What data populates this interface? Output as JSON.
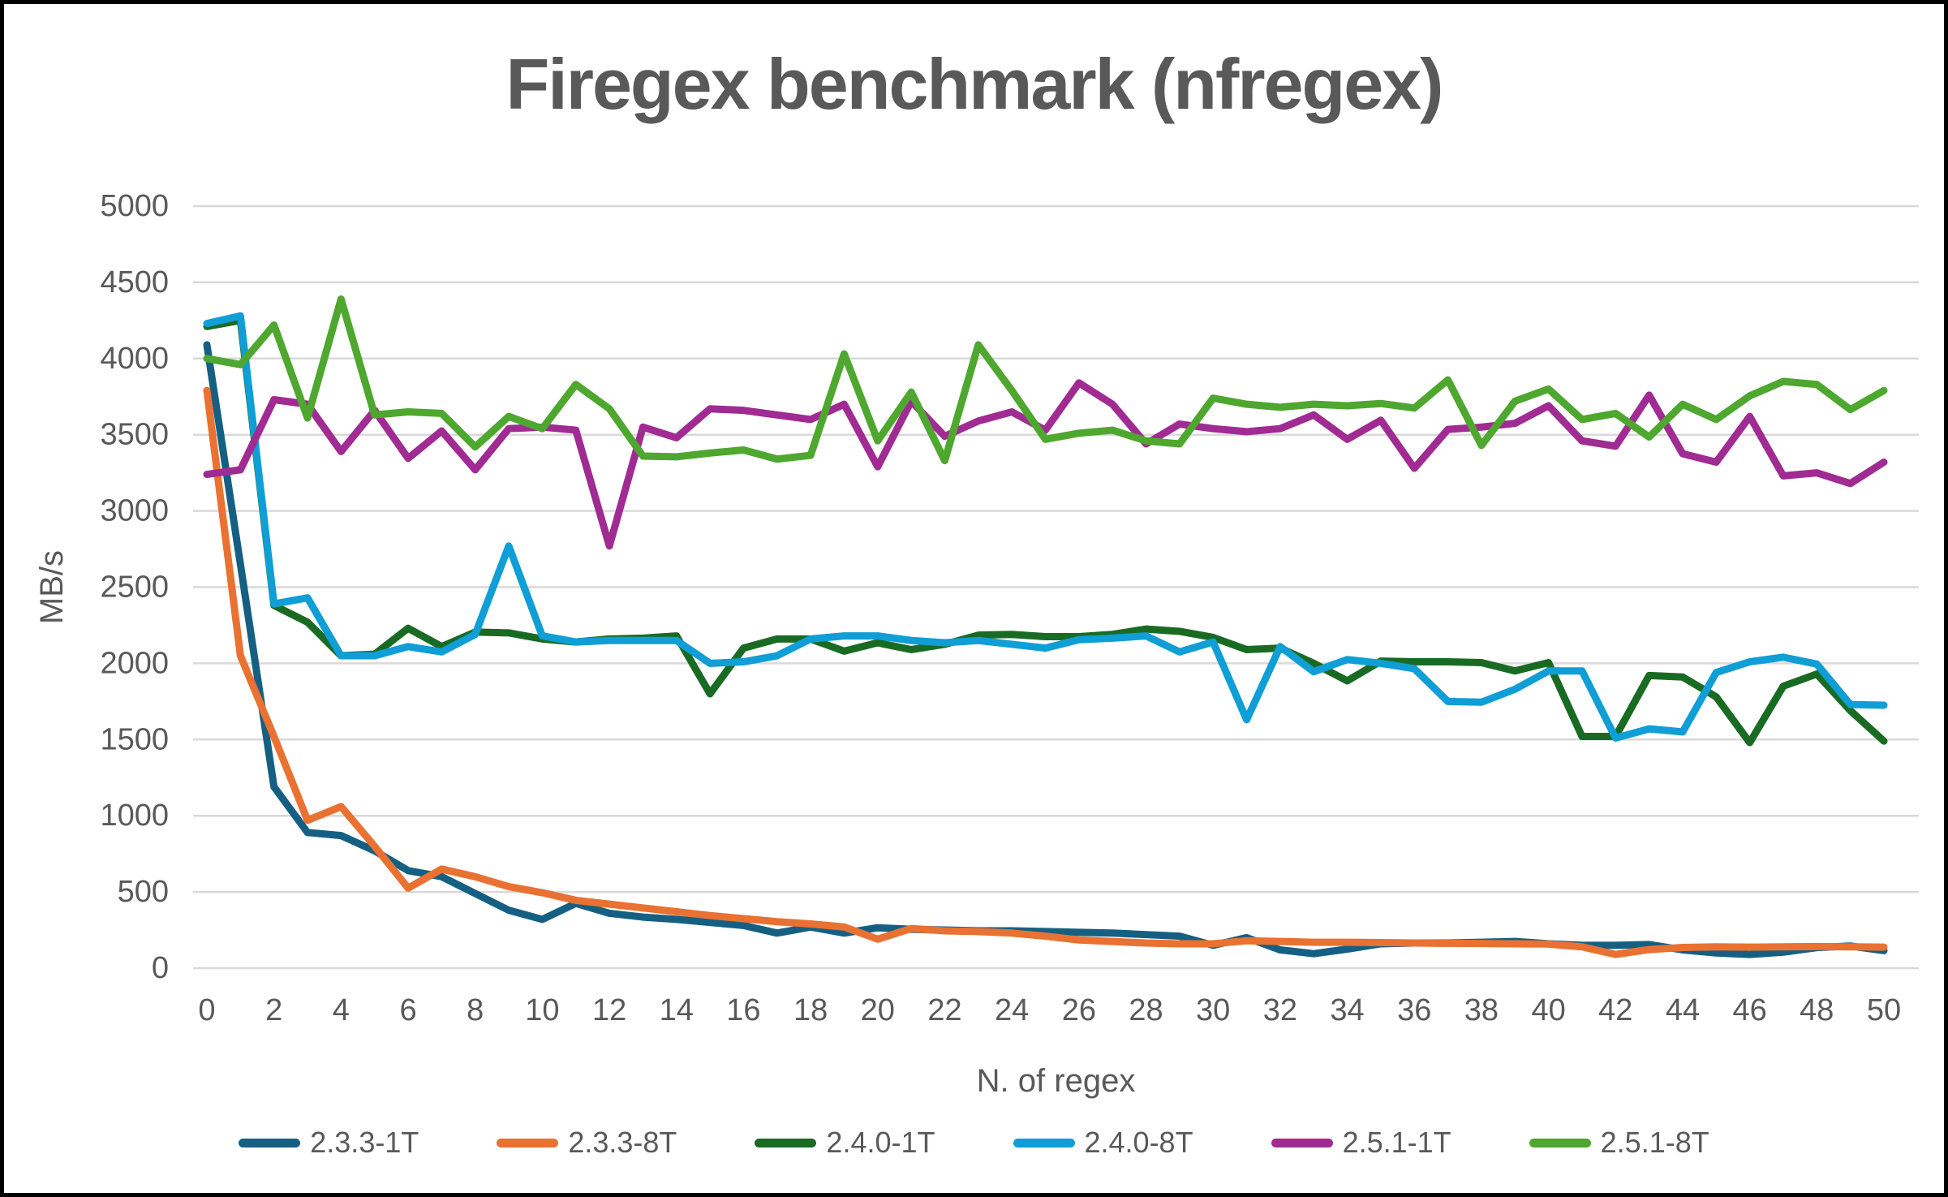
{
  "title": "Firegex benchmark (nfregex)",
  "colors": {
    "title_text": "#595959",
    "axis_text": "#595959",
    "gridline": "#d9d9d9",
    "frame_border": "#000000",
    "background": "#ffffff"
  },
  "chart_data": {
    "type": "line",
    "title": "Firegex benchmark (nfregex)",
    "xlabel": "N. of regex",
    "ylabel": "MB/s",
    "xlim": [
      0,
      50
    ],
    "ylim": [
      0,
      5000
    ],
    "grid": "horizontal",
    "legend_position": "bottom",
    "x_ticks": [
      0,
      2,
      4,
      6,
      8,
      10,
      12,
      14,
      16,
      18,
      20,
      22,
      24,
      26,
      28,
      30,
      32,
      34,
      36,
      38,
      40,
      42,
      44,
      46,
      48,
      50
    ],
    "y_ticks": [
      0,
      500,
      1000,
      1500,
      2000,
      2500,
      3000,
      3500,
      4000,
      4500,
      5000
    ],
    "x": [
      0,
      1,
      2,
      3,
      4,
      5,
      6,
      7,
      8,
      9,
      10,
      11,
      12,
      13,
      14,
      15,
      16,
      17,
      18,
      19,
      20,
      21,
      22,
      23,
      24,
      25,
      26,
      27,
      28,
      29,
      30,
      31,
      32,
      33,
      34,
      35,
      36,
      37,
      38,
      39,
      40,
      41,
      42,
      43,
      44,
      45,
      46,
      47,
      48,
      49,
      50
    ],
    "series": [
      {
        "name": "2.3.3-1T",
        "color": "#156082",
        "values": [
          4090,
          2650,
          1190,
          890,
          870,
          770,
          640,
          600,
          490,
          380,
          320,
          425,
          360,
          335,
          320,
          300,
          280,
          230,
          270,
          230,
          265,
          255,
          250,
          245,
          245,
          240,
          235,
          230,
          220,
          210,
          150,
          200,
          120,
          95,
          125,
          160,
          165,
          165,
          170,
          175,
          160,
          150,
          150,
          155,
          120,
          100,
          90,
          105,
          135,
          145,
          115
        ]
      },
      {
        "name": "2.3.3-8T",
        "color": "#E97132",
        "values": [
          3790,
          2050,
          1520,
          970,
          1060,
          800,
          525,
          650,
          600,
          535,
          495,
          445,
          420,
          395,
          370,
          345,
          325,
          305,
          290,
          270,
          190,
          260,
          245,
          240,
          230,
          210,
          185,
          175,
          165,
          160,
          160,
          180,
          175,
          170,
          170,
          168,
          165,
          163,
          162,
          160,
          158,
          140,
          90,
          122,
          136,
          140,
          138,
          140,
          142,
          140,
          138
        ]
      },
      {
        "name": "2.4.0-1T",
        "color": "#196B24",
        "values": [
          4210,
          4250,
          2380,
          2270,
          2050,
          2060,
          2230,
          2110,
          2205,
          2200,
          2160,
          2140,
          2160,
          2165,
          2180,
          1800,
          2100,
          2160,
          2160,
          2080,
          2135,
          2090,
          2125,
          2185,
          2190,
          2175,
          2175,
          2190,
          2225,
          2210,
          2170,
          2090,
          2100,
          2000,
          1885,
          2015,
          2010,
          2010,
          2005,
          1950,
          2005,
          1520,
          1520,
          1920,
          1910,
          1780,
          1480,
          1850,
          1930,
          1690,
          1490
        ]
      },
      {
        "name": "2.4.0-8T",
        "color": "#0F9ED5",
        "values": [
          4230,
          4280,
          2390,
          2430,
          2050,
          2050,
          2110,
          2075,
          2190,
          2770,
          2180,
          2140,
          2150,
          2150,
          2150,
          2000,
          2010,
          2050,
          2160,
          2180,
          2180,
          2150,
          2135,
          2150,
          2125,
          2100,
          2155,
          2165,
          2180,
          2075,
          2140,
          1630,
          2110,
          1945,
          2025,
          2000,
          1965,
          1750,
          1745,
          1830,
          1950,
          1950,
          1510,
          1570,
          1550,
          1940,
          2010,
          2040,
          1995,
          1730,
          1725
        ]
      },
      {
        "name": "2.5.1-1T",
        "color": "#A02B93",
        "values": [
          3240,
          3270,
          3730,
          3700,
          3390,
          3660,
          3345,
          3525,
          3270,
          3540,
          3550,
          3530,
          2770,
          3550,
          3480,
          3670,
          3660,
          3630,
          3600,
          3700,
          3290,
          3720,
          3490,
          3590,
          3650,
          3530,
          3840,
          3700,
          3440,
          3570,
          3540,
          3520,
          3540,
          3630,
          3470,
          3595,
          3280,
          3535,
          3550,
          3575,
          3690,
          3460,
          3425,
          3760,
          3375,
          3320,
          3620,
          3230,
          3250,
          3180,
          3320
        ]
      },
      {
        "name": "2.5.1-8T",
        "color": "#4EA72E",
        "values": [
          4000,
          3960,
          4220,
          3610,
          4390,
          3630,
          3650,
          3640,
          3420,
          3620,
          3540,
          3830,
          3670,
          3360,
          3355,
          3380,
          3400,
          3340,
          3365,
          4030,
          3460,
          3780,
          3330,
          4090,
          3790,
          3470,
          3510,
          3530,
          3460,
          3440,
          3740,
          3700,
          3680,
          3700,
          3690,
          3705,
          3675,
          3860,
          3430,
          3720,
          3800,
          3600,
          3640,
          3485,
          3700,
          3600,
          3755,
          3850,
          3830,
          3665,
          3790
        ]
      }
    ]
  }
}
